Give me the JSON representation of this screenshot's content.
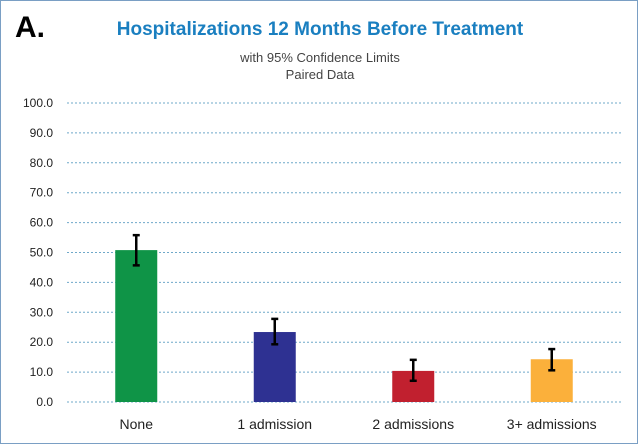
{
  "panel_label": "A.",
  "chart_data": {
    "type": "bar",
    "title": "Hospitalizations 12 Months Before Treatment",
    "subtitle": "with 95% Confidence Limits",
    "subtitle2": "Paired Data",
    "categories": [
      "None",
      "1 admission",
      "2 admissions",
      "3+ admissions"
    ],
    "values": [
      50.8,
      23.4,
      10.4,
      14.3
    ],
    "error_low": [
      45.7,
      19.3,
      7.1,
      10.6
    ],
    "error_high": [
      55.8,
      27.8,
      14.1,
      17.7
    ],
    "colors": [
      "#0f9447",
      "#2e3192",
      "#c1202f",
      "#fbb03b"
    ],
    "ylim": [
      0,
      100
    ],
    "yticks": [
      "0.0",
      "10.0",
      "20.0",
      "30.0",
      "40.0",
      "50.0",
      "60.0",
      "70.0",
      "80.0",
      "90.0",
      "100.0"
    ],
    "grid": true,
    "gridline_color": "#6fa8c9",
    "legend": "none"
  }
}
